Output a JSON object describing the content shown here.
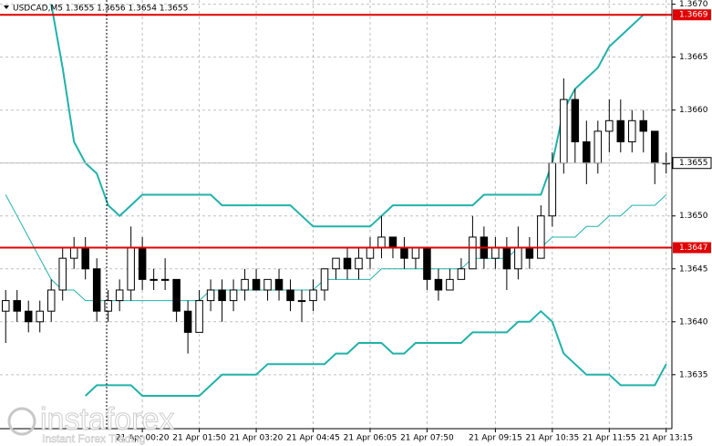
{
  "chart_data": {
    "type": "candlestick",
    "title": "USDCAD,M5 1.3655 1.3656 1.3654 1.3655",
    "categories": [
      null,
      null,
      null,
      null,
      null,
      null,
      null,
      null,
      null,
      null,
      null,
      null,
      "21 Apr 00:20",
      null,
      null,
      null,
      null,
      "21 Apr 01:50",
      null,
      null,
      null,
      null,
      "21 Apr 03:20",
      null,
      null,
      null,
      null,
      "21 Apr 04:45",
      null,
      null,
      null,
      null,
      "21 Apr 06:05",
      null,
      null,
      null,
      null,
      "21 Apr 07:50",
      null,
      null,
      null,
      null,
      null,
      "21 Apr 09:15",
      null,
      null,
      null,
      null,
      "21 Apr 10:35",
      null,
      null,
      null,
      null,
      "21 Apr 11:55",
      null,
      null,
      null,
      null,
      "21 Apr 13:15"
    ],
    "open": [
      1.3641,
      1.3642,
      1.3641,
      1.364,
      1.3641,
      1.3643,
      1.3646,
      1.3647,
      1.3645,
      1.3641,
      1.3642,
      1.3643,
      1.3647,
      1.3644,
      1.3644,
      1.3644,
      1.3641,
      1.3639,
      1.3642,
      1.3643,
      1.3642,
      1.3643,
      1.3644,
      1.3643,
      1.3644,
      1.3643,
      1.3642,
      1.3642,
      1.3643,
      1.3645,
      1.3646,
      1.3645,
      1.3646,
      1.3647,
      1.3648,
      1.3647,
      1.3646,
      1.3647,
      1.3644,
      1.3643,
      1.3644,
      1.3645,
      1.3648,
      1.3646,
      1.3647,
      1.3645,
      1.3647,
      1.3646,
      1.365,
      1.3655,
      1.3661,
      1.3657,
      1.3655,
      1.3658,
      1.3659,
      1.3657,
      1.3659,
      1.3658,
      1.3655
    ],
    "high": [
      1.3643,
      1.3643,
      1.3642,
      1.3642,
      1.3644,
      1.3647,
      1.3648,
      1.3648,
      1.3646,
      1.3643,
      1.3644,
      1.3649,
      1.3648,
      1.3645,
      1.3646,
      1.3644,
      1.3642,
      1.3643,
      1.3644,
      1.3644,
      1.3644,
      1.3645,
      1.3645,
      1.3644,
      1.3645,
      1.3644,
      1.3643,
      1.3644,
      1.3645,
      1.3646,
      1.3647,
      1.3647,
      1.3648,
      1.365,
      1.3648,
      1.3648,
      1.3647,
      1.3647,
      1.3645,
      1.3645,
      1.3646,
      1.365,
      1.3649,
      1.3648,
      1.3648,
      1.3649,
      1.3648,
      1.3651,
      1.3656,
      1.3663,
      1.3662,
      1.3659,
      1.3659,
      1.3661,
      1.3661,
      1.366,
      1.366,
      1.3658,
      1.3656
    ],
    "low": [
      1.3638,
      1.364,
      1.3639,
      1.3639,
      1.364,
      1.3642,
      1.3645,
      1.3644,
      1.364,
      1.364,
      1.3641,
      1.3642,
      1.3643,
      1.3643,
      1.3643,
      1.364,
      1.3637,
      1.3639,
      1.3641,
      1.364,
      1.3641,
      1.3642,
      1.3643,
      1.3642,
      1.3642,
      1.3641,
      1.364,
      1.3641,
      1.3642,
      1.3644,
      1.3644,
      1.3644,
      1.3645,
      1.3646,
      1.3646,
      1.3645,
      1.3645,
      1.3643,
      1.3642,
      1.3643,
      1.3644,
      1.3645,
      1.3645,
      1.3645,
      1.3643,
      1.3644,
      1.3645,
      1.3646,
      1.3649,
      1.3654,
      1.3655,
      1.3653,
      1.3654,
      1.3656,
      1.3656,
      1.3656,
      1.3656,
      1.3653,
      1.3654
    ],
    "close": [
      1.3642,
      1.3641,
      1.364,
      1.3641,
      1.3643,
      1.3646,
      1.3647,
      1.3645,
      1.3641,
      1.3642,
      1.3643,
      1.3647,
      1.3644,
      1.3644,
      1.3644,
      1.3641,
      1.3639,
      1.3642,
      1.3643,
      1.3642,
      1.3643,
      1.3644,
      1.3643,
      1.3644,
      1.3643,
      1.3642,
      1.3642,
      1.3643,
      1.3645,
      1.3646,
      1.3645,
      1.3646,
      1.3647,
      1.3648,
      1.3647,
      1.3646,
      1.3647,
      1.3644,
      1.3643,
      1.3644,
      1.3645,
      1.3648,
      1.3646,
      1.3647,
      1.3645,
      1.3647,
      1.3646,
      1.365,
      1.3655,
      1.3661,
      1.3657,
      1.3655,
      1.3658,
      1.3659,
      1.3657,
      1.3659,
      1.3658,
      1.3655,
      1.3655
    ],
    "candle_color": "#000000",
    "lines": [
      {
        "color": "#20b2aa",
        "width": 2,
        "values": [
          null,
          null,
          null,
          null,
          1.367,
          1.3664,
          1.3657,
          1.3655,
          1.3654,
          1.3651,
          1.365,
          1.3651,
          1.3652,
          1.3652,
          1.3652,
          1.3652,
          1.3652,
          1.3652,
          1.3652,
          1.3651,
          1.3651,
          1.3651,
          1.3651,
          1.3651,
          1.3651,
          1.3651,
          1.365,
          1.3649,
          1.3649,
          1.3649,
          1.3649,
          1.3649,
          1.3649,
          1.365,
          1.3651,
          1.3651,
          1.3651,
          1.3651,
          1.3651,
          1.3651,
          1.3651,
          1.3651,
          1.3652,
          1.3652,
          1.3652,
          1.3652,
          1.3652,
          1.3652,
          1.3655,
          1.366,
          1.3662,
          1.3663,
          1.3664,
          1.3666,
          1.3667,
          1.3668,
          1.3669,
          1.3669,
          1.3669
        ]
      },
      {
        "color": "#20b2aa",
        "width": 1,
        "values": [
          1.3652,
          1.365,
          1.3648,
          1.3646,
          1.3644,
          1.3643,
          1.3643,
          1.3642,
          1.3642,
          1.3642,
          1.3642,
          1.3642,
          1.3642,
          1.3642,
          1.3642,
          1.3642,
          1.3642,
          1.3642,
          1.3643,
          1.3643,
          1.3643,
          1.3643,
          1.3643,
          1.3643,
          1.3643,
          1.3643,
          1.3643,
          1.3643,
          1.3644,
          1.3644,
          1.3644,
          1.3644,
          1.3644,
          1.3645,
          1.3645,
          1.3645,
          1.3645,
          1.3645,
          1.3645,
          1.3645,
          1.3645,
          1.3646,
          1.3646,
          1.3646,
          1.3646,
          1.3647,
          1.3647,
          1.3647,
          1.3648,
          1.3648,
          1.3648,
          1.3649,
          1.3649,
          1.365,
          1.365,
          1.3651,
          1.3651,
          1.3651,
          1.3652
        ]
      },
      {
        "color": "#20b2aa",
        "width": 2,
        "values": [
          null,
          null,
          null,
          null,
          null,
          null,
          null,
          1.3633,
          1.3634,
          1.3634,
          1.3634,
          1.3634,
          1.3633,
          1.3633,
          1.3633,
          1.3633,
          1.3633,
          1.3633,
          1.3634,
          1.3635,
          1.3635,
          1.3635,
          1.3635,
          1.3636,
          1.3636,
          1.3636,
          1.3636,
          1.3636,
          1.3636,
          1.3637,
          1.3637,
          1.3638,
          1.3638,
          1.3638,
          1.3637,
          1.3637,
          1.3638,
          1.3638,
          1.3638,
          1.3638,
          1.3638,
          1.3639,
          1.3639,
          1.3639,
          1.3639,
          1.364,
          1.364,
          1.3641,
          1.364,
          1.3637,
          1.3636,
          1.3635,
          1.3635,
          1.3635,
          1.3634,
          1.3634,
          1.3634,
          1.3634,
          1.3636
        ]
      }
    ],
    "levels": [
      1.3669,
      1.3647
    ],
    "level_color": "#e00000",
    "last_price": 1.3655,
    "ylim": [
      1.36299,
      1.36704
    ],
    "yticks": [
      {
        "value": 1.367,
        "label": "1.3670"
      },
      1.3665,
      {
        "value": 1.366,
        "label": "1.3660"
      },
      1.3655,
      {
        "value": 1.365,
        "label": "1.3650"
      },
      1.3645,
      {
        "value": 1.364,
        "label": "1.3640"
      },
      1.3635
    ],
    "grid": true
  },
  "watermark": {
    "brand": "instaforex",
    "tagline": "Instant Forex Trading"
  }
}
